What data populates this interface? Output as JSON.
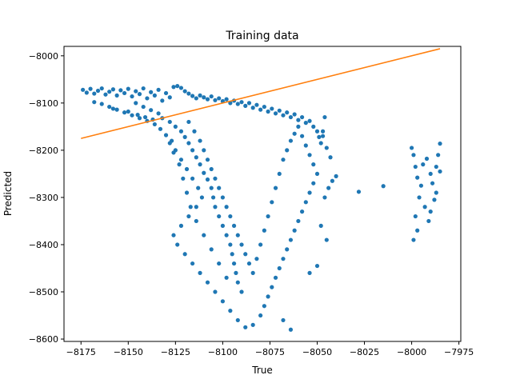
{
  "chart_data": {
    "type": "scatter",
    "title": "Training data",
    "xlabel": "True",
    "ylabel": "Predicted",
    "xlim": [
      -8184,
      -7974
    ],
    "ylim": [
      -8605,
      -7980
    ],
    "xticks": [
      -8175,
      -8150,
      -8125,
      -8100,
      -8075,
      -8050,
      -8025,
      -8000,
      -7975
    ],
    "yticks": [
      -8000,
      -8100,
      -8200,
      -8300,
      -8400,
      -8500,
      -8600
    ],
    "tick_labels_x": [
      "−8175",
      "−8150",
      "−8125",
      "−8100",
      "−8075",
      "−8050",
      "−8025",
      "−8000",
      "−7975"
    ],
    "tick_labels_y": [
      "−8000",
      "−8100",
      "−8200",
      "−8300",
      "−8400",
      "−8500",
      "−8600"
    ],
    "grid": false,
    "colors": {
      "scatter": "#1f77b4",
      "line": "#ff7f0e"
    },
    "fit_line": {
      "x": [
        -8175,
        -7985
      ],
      "y": [
        -8175,
        -7985
      ]
    },
    "series": [
      {
        "kind": "scatter",
        "points": [
          [
            -8174,
            -8072
          ],
          [
            -8172,
            -8078
          ],
          [
            -8170,
            -8070
          ],
          [
            -8168,
            -8080
          ],
          [
            -8166,
            -8074
          ],
          [
            -8164,
            -8069
          ],
          [
            -8162,
            -8082
          ],
          [
            -8160,
            -8076
          ],
          [
            -8158,
            -8071
          ],
          [
            -8156,
            -8084
          ],
          [
            -8154,
            -8073
          ],
          [
            -8152,
            -8079
          ],
          [
            -8150,
            -8070
          ],
          [
            -8148,
            -8086
          ],
          [
            -8146,
            -8075
          ],
          [
            -8144,
            -8081
          ],
          [
            -8142,
            -8069
          ],
          [
            -8140,
            -8090
          ],
          [
            -8138,
            -8077
          ],
          [
            -8136,
            -8084
          ],
          [
            -8134,
            -8072
          ],
          [
            -8132,
            -8095
          ],
          [
            -8130,
            -8079
          ],
          [
            -8128,
            -8088
          ],
          [
            -8126,
            -8066
          ],
          [
            -8124,
            -8064
          ],
          [
            -8122,
            -8068
          ],
          [
            -8120,
            -8075
          ],
          [
            -8118,
            -8080
          ],
          [
            -8116,
            -8085
          ],
          [
            -8114,
            -8090
          ],
          [
            -8112,
            -8084
          ],
          [
            -8110,
            -8088
          ],
          [
            -8108,
            -8092
          ],
          [
            -8106,
            -8086
          ],
          [
            -8104,
            -8094
          ],
          [
            -8102,
            -8090
          ],
          [
            -8100,
            -8096
          ],
          [
            -8098,
            -8092
          ],
          [
            -8096,
            -8100
          ],
          [
            -8094,
            -8095
          ],
          [
            -8092,
            -8102
          ],
          [
            -8090,
            -8098
          ],
          [
            -8088,
            -8106
          ],
          [
            -8086,
            -8100
          ],
          [
            -8084,
            -8110
          ],
          [
            -8082,
            -8104
          ],
          [
            -8080,
            -8114
          ],
          [
            -8078,
            -8108
          ],
          [
            -8076,
            -8118
          ],
          [
            -8074,
            -8112
          ],
          [
            -8072,
            -8122
          ],
          [
            -8070,
            -8116
          ],
          [
            -8068,
            -8126
          ],
          [
            -8066,
            -8120
          ],
          [
            -8064,
            -8130
          ],
          [
            -8062,
            -8124
          ],
          [
            -8060,
            -8136
          ],
          [
            -8058,
            -8130
          ],
          [
            -8056,
            -8142
          ],
          [
            -8054,
            -8138
          ],
          [
            -8052,
            -8150
          ],
          [
            -8050,
            -8160
          ],
          [
            -8049,
            -8172
          ],
          [
            -8048,
            -8185
          ],
          [
            -8047,
            -8170
          ],
          [
            -8146,
            -8100
          ],
          [
            -8142,
            -8108
          ],
          [
            -8138,
            -8115
          ],
          [
            -8134,
            -8122
          ],
          [
            -8132,
            -8132
          ],
          [
            -8128,
            -8140
          ],
          [
            -8125,
            -8150
          ],
          [
            -8122,
            -8160
          ],
          [
            -8120,
            -8172
          ],
          [
            -8118,
            -8185
          ],
          [
            -8116,
            -8200
          ],
          [
            -8114,
            -8215
          ],
          [
            -8112,
            -8230
          ],
          [
            -8110,
            -8248
          ],
          [
            -8108,
            -8262
          ],
          [
            -8106,
            -8280
          ],
          [
            -8105,
            -8300
          ],
          [
            -8104,
            -8320
          ],
          [
            -8102,
            -8340
          ],
          [
            -8100,
            -8360
          ],
          [
            -8098,
            -8380
          ],
          [
            -8096,
            -8400
          ],
          [
            -8095,
            -8420
          ],
          [
            -8094,
            -8440
          ],
          [
            -8093,
            -8460
          ],
          [
            -8092,
            -8480
          ],
          [
            -8090,
            -8500
          ],
          [
            -8098,
            -8470
          ],
          [
            -8102,
            -8440
          ],
          [
            -8106,
            -8410
          ],
          [
            -8110,
            -8380
          ],
          [
            -8114,
            -8350
          ],
          [
            -8117,
            -8320
          ],
          [
            -8119,
            -8290
          ],
          [
            -8121,
            -8260
          ],
          [
            -8123,
            -8230
          ],
          [
            -8126,
            -8205
          ],
          [
            -8128,
            -8185
          ],
          [
            -8130,
            -8168
          ],
          [
            -8133,
            -8155
          ],
          [
            -8136,
            -8145
          ],
          [
            -8140,
            -8138
          ],
          [
            -8144,
            -8132
          ],
          [
            -8148,
            -8126
          ],
          [
            -8152,
            -8120
          ],
          [
            -8156,
            -8114
          ],
          [
            -8160,
            -8108
          ],
          [
            -8164,
            -8102
          ],
          [
            -8168,
            -8098
          ],
          [
            -8158,
            -8112
          ],
          [
            -8150,
            -8118
          ],
          [
            -8145,
            -8125
          ],
          [
            -8141,
            -8130
          ],
          [
            -8137,
            -8135
          ],
          [
            -8118,
            -8140
          ],
          [
            -8115,
            -8160
          ],
          [
            -8112,
            -8180
          ],
          [
            -8110,
            -8200
          ],
          [
            -8108,
            -8220
          ],
          [
            -8106,
            -8240
          ],
          [
            -8104,
            -8260
          ],
          [
            -8102,
            -8280
          ],
          [
            -8100,
            -8300
          ],
          [
            -8098,
            -8320
          ],
          [
            -8096,
            -8340
          ],
          [
            -8094,
            -8360
          ],
          [
            -8092,
            -8380
          ],
          [
            -8090,
            -8400
          ],
          [
            -8088,
            -8420
          ],
          [
            -8086,
            -8440
          ],
          [
            -8084,
            -8460
          ],
          [
            -8082,
            -8430
          ],
          [
            -8080,
            -8400
          ],
          [
            -8078,
            -8370
          ],
          [
            -8076,
            -8340
          ],
          [
            -8074,
            -8310
          ],
          [
            -8072,
            -8280
          ],
          [
            -8070,
            -8250
          ],
          [
            -8068,
            -8220
          ],
          [
            -8066,
            -8200
          ],
          [
            -8064,
            -8180
          ],
          [
            -8062,
            -8165
          ],
          [
            -8060,
            -8150
          ],
          [
            -8058,
            -8170
          ],
          [
            -8056,
            -8190
          ],
          [
            -8054,
            -8210
          ],
          [
            -8052,
            -8230
          ],
          [
            -8050,
            -8250
          ],
          [
            -8052,
            -8270
          ],
          [
            -8054,
            -8290
          ],
          [
            -8056,
            -8310
          ],
          [
            -8058,
            -8330
          ],
          [
            -8060,
            -8350
          ],
          [
            -8062,
            -8370
          ],
          [
            -8064,
            -8390
          ],
          [
            -8066,
            -8410
          ],
          [
            -8068,
            -8430
          ],
          [
            -8070,
            -8450
          ],
          [
            -8072,
            -8470
          ],
          [
            -8074,
            -8490
          ],
          [
            -8076,
            -8510
          ],
          [
            -8078,
            -8530
          ],
          [
            -8080,
            -8550
          ],
          [
            -8084,
            -8570
          ],
          [
            -8088,
            -8575
          ],
          [
            -8092,
            -8560
          ],
          [
            -8096,
            -8540
          ],
          [
            -8100,
            -8520
          ],
          [
            -8104,
            -8500
          ],
          [
            -8108,
            -8480
          ],
          [
            -8112,
            -8460
          ],
          [
            -8116,
            -8440
          ],
          [
            -8120,
            -8420
          ],
          [
            -8124,
            -8400
          ],
          [
            -8126,
            -8380
          ],
          [
            -8122,
            -8360
          ],
          [
            -8118,
            -8340
          ],
          [
            -8114,
            -8320
          ],
          [
            -8111,
            -8300
          ],
          [
            -8113,
            -8280
          ],
          [
            -8116,
            -8260
          ],
          [
            -8119,
            -8240
          ],
          [
            -8122,
            -8220
          ],
          [
            -8125,
            -8200
          ],
          [
            -8127,
            -8180
          ],
          [
            -8064,
            -8580
          ],
          [
            -8068,
            -8560
          ],
          [
            -8054,
            -8460
          ],
          [
            -8050,
            -8445
          ],
          [
            -8045,
            -8390
          ],
          [
            -8048,
            -8360
          ],
          [
            -8046,
            -8300
          ],
          [
            -8044,
            -8280
          ],
          [
            -8042,
            -8265
          ],
          [
            -8040,
            -8255
          ],
          [
            -8043,
            -8215
          ],
          [
            -8045,
            -8195
          ],
          [
            -8047,
            -8160
          ],
          [
            -8046,
            -8130
          ],
          [
            -8028,
            -8288
          ],
          [
            -8015,
            -8276
          ],
          [
            -8000,
            -8195
          ],
          [
            -7999,
            -8210
          ],
          [
            -7998,
            -8235
          ],
          [
            -7997,
            -8258
          ],
          [
            -7996,
            -8300
          ],
          [
            -7998,
            -8340
          ],
          [
            -7999,
            -8390
          ],
          [
            -7997,
            -8370
          ],
          [
            -7995,
            -8275
          ],
          [
            -7994,
            -8230
          ],
          [
            -7992,
            -8218
          ],
          [
            -7990,
            -8250
          ],
          [
            -7989,
            -8270
          ],
          [
            -7988,
            -8305
          ],
          [
            -7990,
            -8330
          ],
          [
            -7991,
            -8350
          ],
          [
            -7987,
            -8290
          ],
          [
            -7986,
            -8210
          ],
          [
            -7985,
            -8245
          ],
          [
            -7985,
            -8186
          ],
          [
            -7993,
            -8320
          ],
          [
            -7987,
            -8235
          ]
        ]
      }
    ]
  }
}
